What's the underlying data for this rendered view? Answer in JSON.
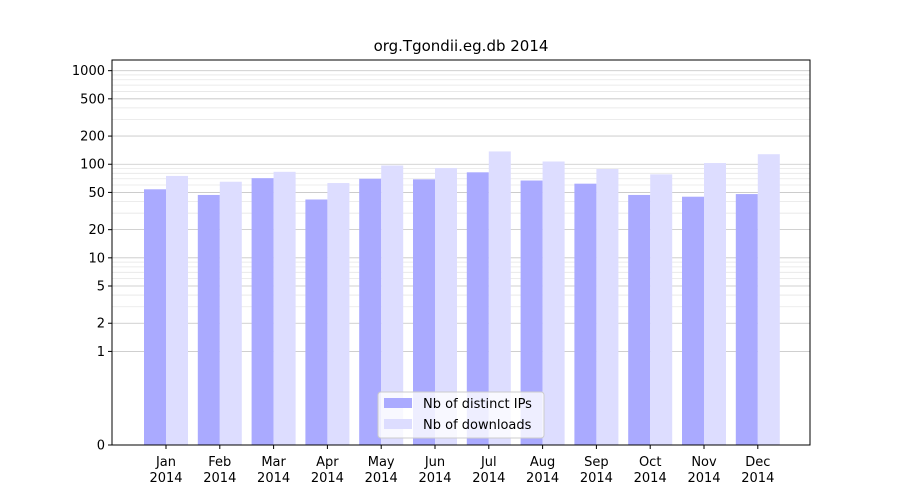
{
  "chart_data": {
    "type": "bar",
    "title": "org.Tgondii.eg.db 2014",
    "xlabel": "",
    "ylabel": "",
    "yscale": "symlog",
    "ylim": [
      0,
      1300
    ],
    "grid": true,
    "legend_placement": "bottom-center",
    "categories": [
      [
        "Jan",
        "2014"
      ],
      [
        "Feb",
        "2014"
      ],
      [
        "Mar",
        "2014"
      ],
      [
        "Apr",
        "2014"
      ],
      [
        "May",
        "2014"
      ],
      [
        "Jun",
        "2014"
      ],
      [
        "Jul",
        "2014"
      ],
      [
        "Aug",
        "2014"
      ],
      [
        "Sep",
        "2014"
      ],
      [
        "Oct",
        "2014"
      ],
      [
        "Nov",
        "2014"
      ],
      [
        "Dec",
        "2014"
      ]
    ],
    "yticks": [
      {
        "value": 0,
        "label": "0"
      },
      {
        "value": 1,
        "label": "1"
      },
      {
        "value": 2,
        "label": "2"
      },
      {
        "value": 5,
        "label": "5"
      },
      {
        "value": 10,
        "label": "10"
      },
      {
        "value": 20,
        "label": "20"
      },
      {
        "value": 50,
        "label": "50"
      },
      {
        "value": 100,
        "label": "100"
      },
      {
        "value": 200,
        "label": "200"
      },
      {
        "value": 500,
        "label": "500"
      },
      {
        "value": 1000,
        "label": "1000"
      }
    ],
    "series": [
      {
        "name": "Nb of distinct IPs",
        "color": "#aaaaff",
        "values": [
          54,
          47,
          71,
          42,
          70,
          69,
          82,
          67,
          62,
          47,
          45,
          48
        ]
      },
      {
        "name": "Nb of downloads",
        "color": "#ddddff",
        "values": [
          75,
          65,
          83,
          63,
          97,
          91,
          137,
          107,
          89,
          78,
          103,
          128
        ]
      }
    ]
  }
}
